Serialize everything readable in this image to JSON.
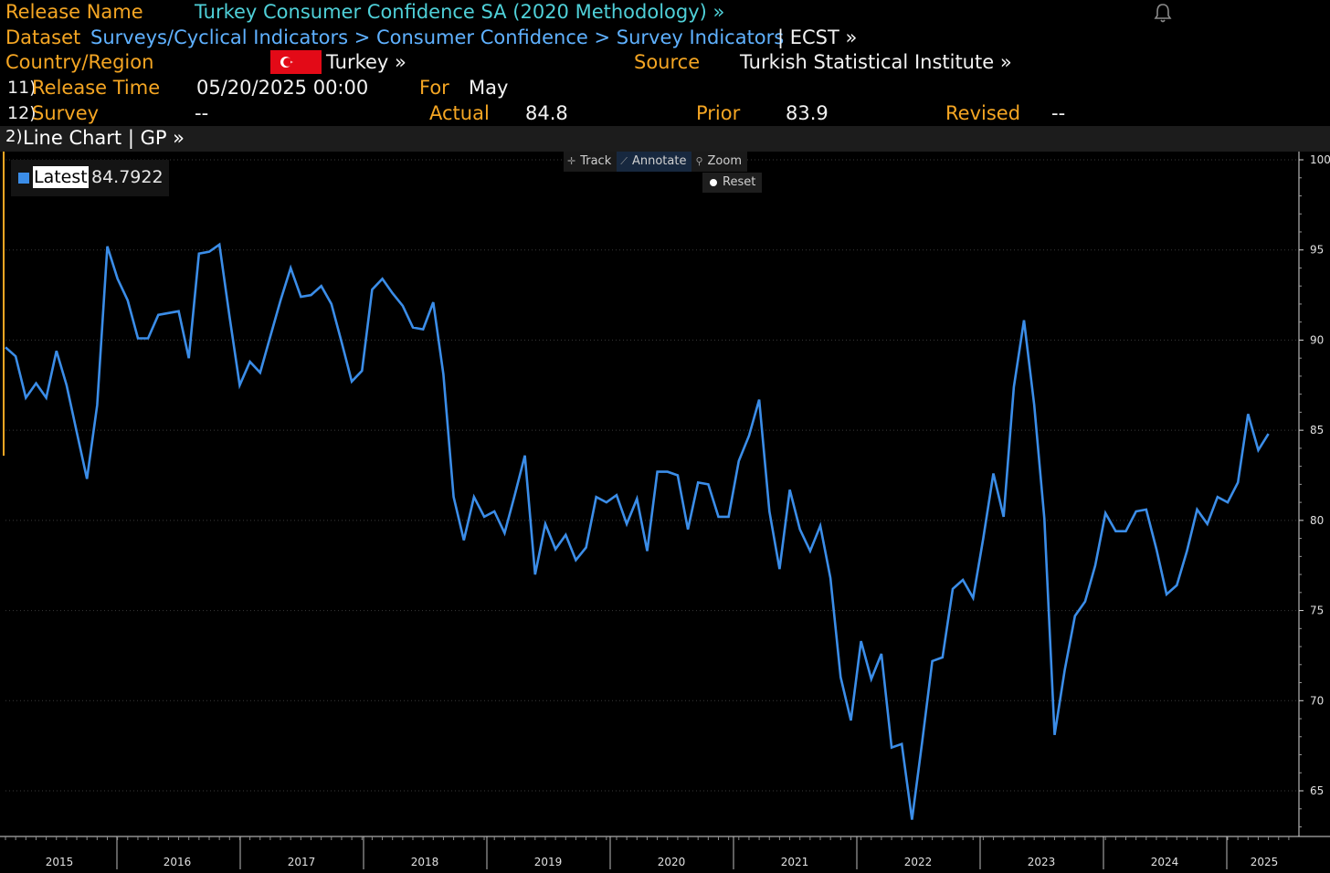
{
  "header": {
    "release_name_label": "Release Name",
    "release_name": "Turkey Consumer Confidence SA (2020 Methodology) »",
    "dataset_label": "Dataset",
    "dataset_path": "Surveys/Cyclical Indicators > Consumer Confidence > Survey Indicators",
    "dataset_code": "| ECST »",
    "country_label": "Country/Region",
    "country": "Turkey »",
    "source_label": "Source",
    "source": "Turkish Statistical Institute »",
    "release_time_num": "11)",
    "release_time_label": "Release Time",
    "release_time": "05/20/2025 00:00",
    "for_label": "For",
    "for_value": "May",
    "survey_num": "12)",
    "survey_label": "Survey",
    "survey_value": "--",
    "actual_label": "Actual",
    "actual_value": "84.8",
    "prior_label": "Prior",
    "prior_value": "83.9",
    "revised_label": "Revised",
    "revised_value": "--"
  },
  "tab": {
    "num": "2)",
    "label": "Line Chart | GP »"
  },
  "toolbar": {
    "track": "Track",
    "annotate": "Annotate",
    "zoom": "Zoom",
    "reset": "Reset"
  },
  "legend": {
    "label": "Latest",
    "value": "84.7922"
  },
  "colors": {
    "accent": "#f5a623",
    "link": "#5fb1ff",
    "series": "#3b8de8"
  },
  "chart_data": {
    "type": "line",
    "title": "",
    "xlabel": "",
    "ylabel": "",
    "ylim": [
      62.5,
      100
    ],
    "yticks": [
      100,
      95,
      90,
      85,
      80,
      75,
      70,
      65
    ],
    "xtick_labels": [
      "2015",
      "2016",
      "2017",
      "2018",
      "2019",
      "2020",
      "2021",
      "2022",
      "2023",
      "2024",
      "2025"
    ],
    "series": [
      {
        "name": "Latest",
        "x_start": "2015-01",
        "frequency": "monthly",
        "values": [
          89.6,
          89.1,
          86.8,
          87.6,
          86.8,
          89.4,
          87.5,
          84.9,
          82.3,
          86.4,
          95.2,
          93.4,
          92.2,
          90.1,
          90.1,
          91.4,
          91.5,
          91.6,
          89.0,
          94.8,
          94.9,
          95.3,
          91.3,
          87.5,
          88.8,
          88.2,
          90.2,
          92.2,
          94.0,
          92.4,
          92.5,
          93.0,
          92.0,
          89.9,
          87.7,
          88.3,
          92.8,
          93.4,
          92.6,
          91.9,
          90.7,
          90.6,
          92.1,
          88.1,
          81.3,
          78.9,
          81.3,
          80.2,
          80.5,
          79.3,
          81.4,
          83.6,
          77.0,
          79.8,
          78.4,
          79.2,
          77.8,
          78.5,
          81.3,
          81.0,
          81.4,
          79.8,
          81.2,
          78.3,
          82.7,
          82.7,
          82.5,
          79.5,
          82.1,
          82.0,
          80.2,
          80.2,
          83.3,
          84.7,
          86.7,
          80.5,
          77.3,
          81.7,
          79.5,
          78.3,
          79.7,
          76.8,
          71.3,
          68.9,
          73.3,
          71.2,
          72.6,
          67.4,
          67.6,
          63.4,
          67.7,
          72.2,
          72.4,
          76.2,
          76.7,
          75.7,
          79.0,
          82.6,
          80.2,
          87.4,
          91.1,
          86.4,
          80.1,
          68.1,
          71.7,
          74.7,
          75.5,
          77.5,
          80.4,
          79.4,
          79.4,
          80.5,
          80.6,
          78.4,
          75.9,
          76.4,
          78.3,
          80.6,
          79.8,
          81.3,
          81.0,
          82.1,
          85.9,
          83.9,
          84.8
        ]
      }
    ]
  }
}
